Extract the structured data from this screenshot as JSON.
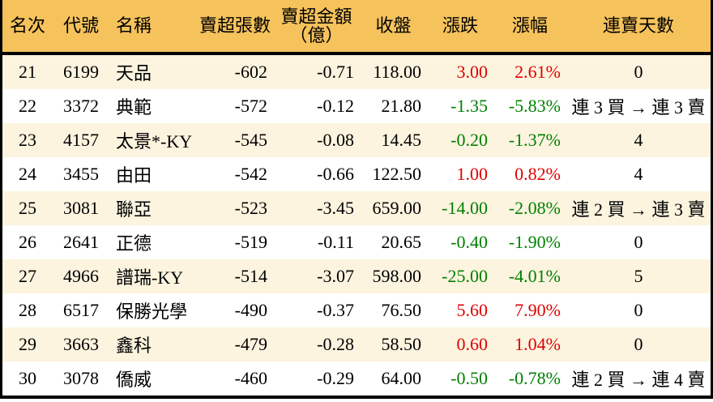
{
  "colors": {
    "header_bg": "#F5C25C",
    "row_alt_bg": "#FCF4DF",
    "up": "#E00000",
    "down": "#008000",
    "border": "#000000"
  },
  "table": {
    "columns": [
      {
        "key": "rank",
        "label": "名次"
      },
      {
        "key": "code",
        "label": "代號"
      },
      {
        "key": "name",
        "label": "名稱"
      },
      {
        "key": "sell_volume",
        "label": "賣超張數"
      },
      {
        "key": "sell_amount",
        "label": "賣超金額",
        "label2": "（億）"
      },
      {
        "key": "close",
        "label": "收盤"
      },
      {
        "key": "change",
        "label": "漲跌"
      },
      {
        "key": "change_pct",
        "label": "漲幅"
      },
      {
        "key": "streak",
        "label": "連賣天數"
      }
    ],
    "rows": [
      {
        "rank": "21",
        "code": "6199",
        "name": "天品",
        "sell_volume": "-602",
        "sell_amount": "-0.71",
        "close": "118.00",
        "change": "3.00",
        "change_pct": "2.61%",
        "streak": "0",
        "trend": "up"
      },
      {
        "rank": "22",
        "code": "3372",
        "name": "典範",
        "sell_volume": "-572",
        "sell_amount": "-0.12",
        "close": "21.80",
        "change": "-1.35",
        "change_pct": "-5.83%",
        "streak": "連 3 買 → 連 3 賣",
        "trend": "down"
      },
      {
        "rank": "23",
        "code": "4157",
        "name": "太景*-KY",
        "sell_volume": "-545",
        "sell_amount": "-0.08",
        "close": "14.45",
        "change": "-0.20",
        "change_pct": "-1.37%",
        "streak": "4",
        "trend": "down"
      },
      {
        "rank": "24",
        "code": "3455",
        "name": "由田",
        "sell_volume": "-542",
        "sell_amount": "-0.66",
        "close": "122.50",
        "change": "1.00",
        "change_pct": "0.82%",
        "streak": "4",
        "trend": "up"
      },
      {
        "rank": "25",
        "code": "3081",
        "name": "聯亞",
        "sell_volume": "-523",
        "sell_amount": "-3.45",
        "close": "659.00",
        "change": "-14.00",
        "change_pct": "-2.08%",
        "streak": "連 2 買 → 連 3 賣",
        "trend": "down"
      },
      {
        "rank": "26",
        "code": "2641",
        "name": "正德",
        "sell_volume": "-519",
        "sell_amount": "-0.11",
        "close": "20.65",
        "change": "-0.40",
        "change_pct": "-1.90%",
        "streak": "0",
        "trend": "down"
      },
      {
        "rank": "27",
        "code": "4966",
        "name": "譜瑞-KY",
        "sell_volume": "-514",
        "sell_amount": "-3.07",
        "close": "598.00",
        "change": "-25.00",
        "change_pct": "-4.01%",
        "streak": "5",
        "trend": "down"
      },
      {
        "rank": "28",
        "code": "6517",
        "name": "保勝光學",
        "sell_volume": "-490",
        "sell_amount": "-0.37",
        "close": "76.50",
        "change": "5.60",
        "change_pct": "7.90%",
        "streak": "0",
        "trend": "up"
      },
      {
        "rank": "29",
        "code": "3663",
        "name": "鑫科",
        "sell_volume": "-479",
        "sell_amount": "-0.28",
        "close": "58.50",
        "change": "0.60",
        "change_pct": "1.04%",
        "streak": "0",
        "trend": "up"
      },
      {
        "rank": "30",
        "code": "3078",
        "name": "僑威",
        "sell_volume": "-460",
        "sell_amount": "-0.29",
        "close": "64.00",
        "change": "-0.50",
        "change_pct": "-0.78%",
        "streak": "連 2 買 → 連 4 賣",
        "trend": "down"
      }
    ]
  }
}
